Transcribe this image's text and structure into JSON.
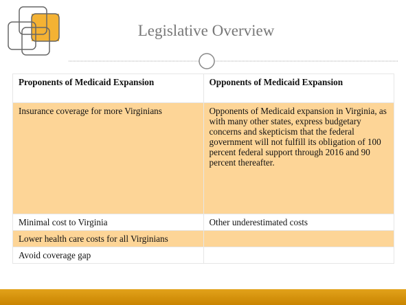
{
  "header": {
    "title": "Legislative Overview"
  },
  "table": {
    "columns": [
      "Proponents of Medicaid Expansion",
      "Opponents of Medicaid Expansion"
    ],
    "rows": [
      [
        "Insurance coverage for more Virginians",
        "Opponents of Medicaid expansion in Virginia, as with many other states, express budgetary concerns and skepticism that the federal government will not fulfill its obligation of 100 percent federal support through 2016 and 90 percent thereafter."
      ],
      [
        "Minimal cost to Virginia",
        "Other underestimated costs"
      ],
      [
        "Lower health care costs for all Virginians"
      ],
      [
        "Avoid coverage gap"
      ]
    ]
  }
}
